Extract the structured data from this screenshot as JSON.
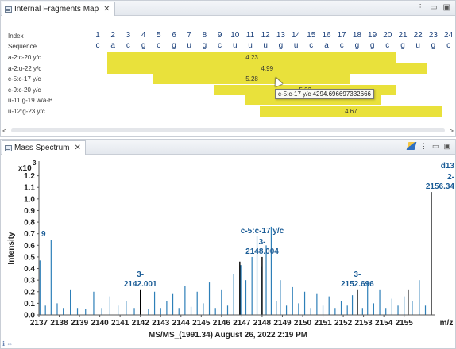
{
  "fragments_panel": {
    "tab_title": "Internal Fragments Map",
    "index_label": "Index",
    "sequence_label": "Sequence",
    "indices": [
      "1",
      "2",
      "3",
      "4",
      "5",
      "6",
      "7",
      "8",
      "9",
      "10",
      "11",
      "12",
      "13",
      "14",
      "15",
      "16",
      "17",
      "18",
      "19",
      "20",
      "21",
      "22",
      "23",
      "24"
    ],
    "sequence": [
      "c",
      "a",
      "c",
      "g",
      "c",
      "g",
      "u",
      "g",
      "c",
      "u",
      "u",
      "u",
      "g",
      "u",
      "c",
      "a",
      "c",
      "g",
      "g",
      "c",
      "g",
      "u",
      "g",
      "c"
    ],
    "rows": [
      {
        "label": "a-2:c-20 y/c",
        "start": 2,
        "end": 20,
        "value": "4.23"
      },
      {
        "label": "a-2:u-22 y/c",
        "start": 2,
        "end": 22,
        "value": "4.99"
      },
      {
        "label": "c-5:c-17 y/c",
        "start": 5,
        "end": 17,
        "value": "5.28"
      },
      {
        "label": "c-9:c-20 y/c",
        "start": 9,
        "end": 20,
        "value": "5.33"
      },
      {
        "label": "u-11:g-19 w/a-B",
        "start": 11,
        "end": 19,
        "value": ""
      },
      {
        "label": "u-12:g-23 y/c",
        "start": 12,
        "end": 23,
        "value": "4.67"
      }
    ],
    "tooltip": "c-5:c-17 y/c 4294.696697332666",
    "scroll_left": "<",
    "scroll_right": ">"
  },
  "spectrum_panel": {
    "tab_title": "Mass Spectrum",
    "footer": "MS/MS_(1991.34) August 26, 2022 2:19 PM",
    "status_icons": "ℹ ⇔"
  },
  "chart_data": {
    "type": "bar",
    "title": "",
    "xlabel": "m/z",
    "ylabel": "Intensity",
    "y_multiplier": "x10",
    "y_exponent": "3",
    "xlim": [
      2137,
      2156.5
    ],
    "ylim": [
      0,
      1.3
    ],
    "x_ticks": [
      "2137",
      "2138",
      "2139",
      "2140",
      "2141",
      "2142",
      "2143",
      "2144",
      "2145",
      "2146",
      "2147",
      "2148",
      "2149",
      "2150",
      "2151",
      "2152",
      "2153",
      "2154",
      "2155"
    ],
    "y_ticks": [
      "0.0",
      "0.1",
      "0.2",
      "0.3",
      "0.4",
      "0.5",
      "0.6",
      "0.7",
      "0.8",
      "0.9",
      "1.0",
      "1.1",
      "1.2"
    ],
    "peaks": [
      {
        "x": 2137.05,
        "y": 0.47
      },
      {
        "x": 2137.32,
        "y": 0.08
      },
      {
        "x": 2137.6,
        "y": 0.65
      },
      {
        "x": 2137.9,
        "y": 0.1
      },
      {
        "x": 2138.2,
        "y": 0.06
      },
      {
        "x": 2138.55,
        "y": 0.22
      },
      {
        "x": 2138.9,
        "y": 0.06
      },
      {
        "x": 2139.3,
        "y": 0.05
      },
      {
        "x": 2139.7,
        "y": 0.2
      },
      {
        "x": 2140.1,
        "y": 0.06
      },
      {
        "x": 2140.5,
        "y": 0.16
      },
      {
        "x": 2140.9,
        "y": 0.08
      },
      {
        "x": 2141.3,
        "y": 0.12
      },
      {
        "x": 2141.7,
        "y": 0.06
      },
      {
        "x": 2142.0,
        "y": 0.22
      },
      {
        "x": 2142.4,
        "y": 0.05
      },
      {
        "x": 2142.7,
        "y": 0.2
      },
      {
        "x": 2143.0,
        "y": 0.06
      },
      {
        "x": 2143.3,
        "y": 0.12
      },
      {
        "x": 2143.6,
        "y": 0.18
      },
      {
        "x": 2143.9,
        "y": 0.06
      },
      {
        "x": 2144.2,
        "y": 0.25
      },
      {
        "x": 2144.5,
        "y": 0.07
      },
      {
        "x": 2144.8,
        "y": 0.2
      },
      {
        "x": 2145.1,
        "y": 0.1
      },
      {
        "x": 2145.4,
        "y": 0.28
      },
      {
        "x": 2145.7,
        "y": 0.06
      },
      {
        "x": 2146.0,
        "y": 0.22
      },
      {
        "x": 2146.3,
        "y": 0.08
      },
      {
        "x": 2146.6,
        "y": 0.35
      },
      {
        "x": 2146.95,
        "y": 0.43
      },
      {
        "x": 2147.2,
        "y": 0.3
      },
      {
        "x": 2147.5,
        "y": 0.5
      },
      {
        "x": 2147.75,
        "y": 0.68
      },
      {
        "x": 2147.95,
        "y": 0.42
      },
      {
        "x": 2148.2,
        "y": 0.6
      },
      {
        "x": 2148.45,
        "y": 0.76
      },
      {
        "x": 2148.7,
        "y": 0.12
      },
      {
        "x": 2148.9,
        "y": 0.3
      },
      {
        "x": 2149.2,
        "y": 0.08
      },
      {
        "x": 2149.5,
        "y": 0.24
      },
      {
        "x": 2149.8,
        "y": 0.1
      },
      {
        "x": 2150.1,
        "y": 0.2
      },
      {
        "x": 2150.4,
        "y": 0.06
      },
      {
        "x": 2150.7,
        "y": 0.18
      },
      {
        "x": 2151.0,
        "y": 0.08
      },
      {
        "x": 2151.3,
        "y": 0.16
      },
      {
        "x": 2151.6,
        "y": 0.06
      },
      {
        "x": 2151.9,
        "y": 0.12
      },
      {
        "x": 2152.2,
        "y": 0.08
      },
      {
        "x": 2152.45,
        "y": 0.17
      },
      {
        "x": 2152.7,
        "y": 0.22
      },
      {
        "x": 2152.95,
        "y": 0.06
      },
      {
        "x": 2153.2,
        "y": 0.28
      },
      {
        "x": 2153.5,
        "y": 0.1
      },
      {
        "x": 2153.8,
        "y": 0.22
      },
      {
        "x": 2154.1,
        "y": 0.06
      },
      {
        "x": 2154.4,
        "y": 0.14
      },
      {
        "x": 2154.7,
        "y": 0.08
      },
      {
        "x": 2155.0,
        "y": 0.16
      },
      {
        "x": 2155.4,
        "y": 0.12
      },
      {
        "x": 2155.75,
        "y": 0.3
      },
      {
        "x": 2156.05,
        "y": 0.08
      },
      {
        "x": 2156.34,
        "y": 1.06
      }
    ],
    "highlight_peaks": [
      {
        "x": 2142.0,
        "y": 0.22
      },
      {
        "x": 2146.9,
        "y": 0.46
      },
      {
        "x": 2148.0,
        "y": 0.5
      },
      {
        "x": 2152.7,
        "y": 0.22
      },
      {
        "x": 2155.2,
        "y": 0.22
      },
      {
        "x": 2156.34,
        "y": 1.06
      }
    ],
    "annotations": [
      {
        "x": 2142.001,
        "y": 0.22,
        "charge": "3-",
        "text": "2142.001"
      },
      {
        "x": 2148.004,
        "y": 0.5,
        "charge": "3-",
        "text": "2148.004",
        "label": "c-5:c-17 y/c"
      },
      {
        "x": 2152.696,
        "y": 0.22,
        "charge": "3-",
        "text": "2152.696"
      },
      {
        "x": 2156.34,
        "y": 1.06,
        "charge": "2-",
        "text": "2156.34",
        "label": "d13"
      },
      {
        "x": 2137.0,
        "y": 0.65,
        "text": "9"
      }
    ],
    "colors": {
      "peak": "#2d7fb8",
      "highlight": "#000000",
      "annotation": "#1a5c96"
    }
  }
}
